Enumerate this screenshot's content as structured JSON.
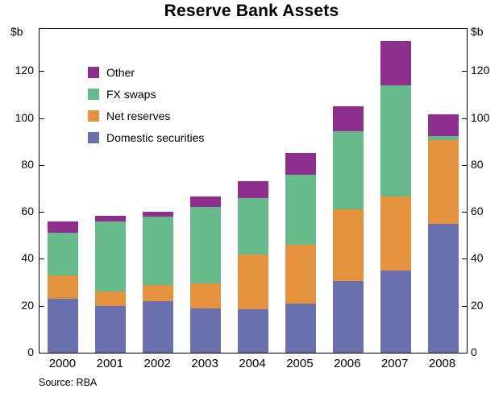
{
  "title": "Reserve Bank Assets",
  "source": "Source: RBA",
  "axis_unit_left": "$b",
  "axis_unit_right": "$b",
  "chart_data": {
    "type": "bar",
    "stacked": true,
    "title": "Reserve Bank Assets",
    "categories": [
      "2000",
      "2001",
      "2002",
      "2003",
      "2004",
      "2005",
      "2006",
      "2007",
      "2008"
    ],
    "series": [
      {
        "name": "Domestic securities",
        "color": "#6a6fad",
        "values": [
          23,
          20,
          22,
          19,
          18.5,
          21,
          30.5,
          35,
          55
        ]
      },
      {
        "name": "Net reserves",
        "color": "#e5923f",
        "values": [
          10,
          6,
          7,
          10.5,
          23.5,
          25,
          30.5,
          31.5,
          35.5
        ]
      },
      {
        "name": "FX swaps",
        "color": "#67bb8b",
        "values": [
          18,
          30,
          29,
          32.5,
          24,
          30,
          33.5,
          47.5,
          2
        ]
      },
      {
        "name": "Other",
        "color": "#8e2f8e",
        "values": [
          5,
          2.5,
          2,
          4.5,
          7,
          9,
          10.5,
          19,
          9
        ]
      }
    ],
    "legend_order": [
      "Other",
      "FX swaps",
      "Net reserves",
      "Domestic securities"
    ],
    "legend_position": "top-left-inside",
    "xlabel": "",
    "ylabel": "$b",
    "ylim": [
      0,
      138
    ],
    "yticks": [
      0,
      20,
      40,
      60,
      80,
      100,
      120
    ],
    "grid": false
  }
}
